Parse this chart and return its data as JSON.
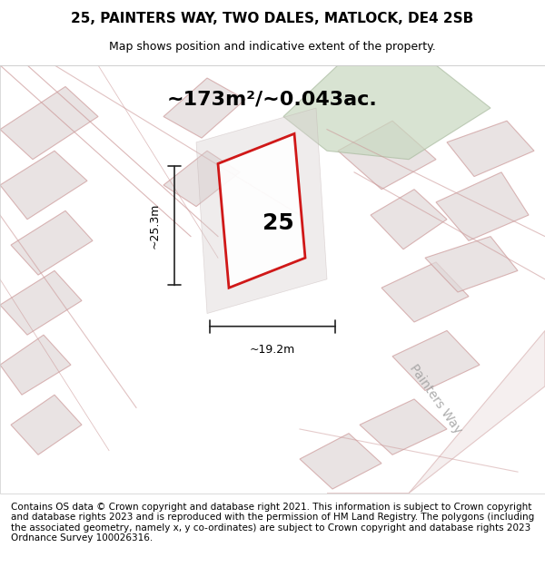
{
  "title": "25, PAINTERS WAY, TWO DALES, MATLOCK, DE4 2SB",
  "subtitle": "Map shows position and indicative extent of the property.",
  "footer": "Contains OS data © Crown copyright and database right 2021. This information is subject to Crown copyright and database rights 2023 and is reproduced with the permission of HM Land Registry. The polygons (including the associated geometry, namely x, y co-ordinates) are subject to Crown copyright and database rights 2023 Ordnance Survey 100026316.",
  "area_label": "~173m²/~0.043ac.",
  "width_label": "~19.2m",
  "height_label": "~25.3m",
  "plot_number": "25",
  "bg_color": "#f5f0f0",
  "map_bg": "#f9f7f7",
  "green_area_color": "#c8d8c0",
  "green_area_alpha": 0.7,
  "road_color": "#e8d0d0",
  "building_color": "#e0d8d8",
  "plot_outline_color": "#cc0000",
  "plot_fill_color": "#ffffff",
  "plot_fill_alpha": 0.3,
  "dim_line_color": "#222222",
  "title_fontsize": 11,
  "subtitle_fontsize": 9,
  "footer_fontsize": 7.5,
  "area_label_fontsize": 16,
  "dim_label_fontsize": 9,
  "plot_number_fontsize": 18,
  "painters_way_label": "Painters Way",
  "painters_way_fontsize": 10
}
